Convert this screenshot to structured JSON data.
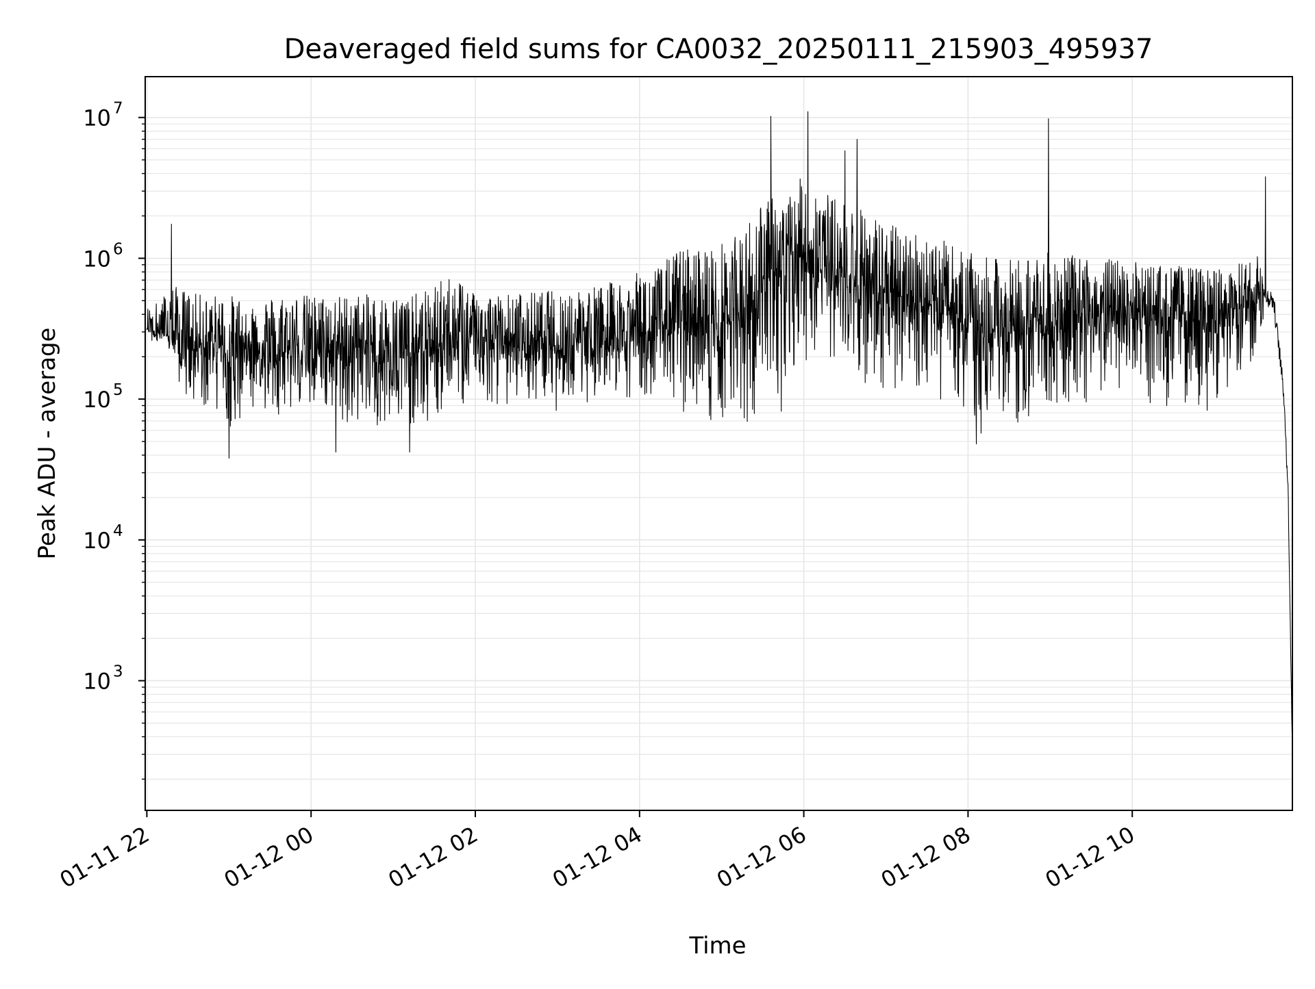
{
  "chart_data": {
    "type": "line",
    "title": "Deaveraged field sums for CA0032_20250111_215903_495937",
    "xlabel": "Time",
    "ylabel": "Peak ADU - average",
    "yscale": "log",
    "ylim": [
      120,
      19500000
    ],
    "xlim_hours": [
      21.98,
      35.95
    ],
    "grid": true,
    "line_color": "#000000",
    "grid_color": "#e6e6e6",
    "x_ticks": [
      {
        "label": "01-11 22",
        "hour": 22
      },
      {
        "label": "01-12 00",
        "hour": 24
      },
      {
        "label": "01-12 02",
        "hour": 26
      },
      {
        "label": "01-12 04",
        "hour": 28
      },
      {
        "label": "01-12 06",
        "hour": 30
      },
      {
        "label": "01-12 08",
        "hour": 32
      },
      {
        "label": "01-12 10",
        "hour": 34
      }
    ],
    "y_ticks": [
      {
        "base": "10",
        "exp": "3",
        "value": 1000
      },
      {
        "base": "10",
        "exp": "4",
        "value": 10000
      },
      {
        "base": "10",
        "exp": "5",
        "value": 100000
      },
      {
        "base": "10",
        "exp": "6",
        "value": 1000000
      },
      {
        "base": "10",
        "exp": "7",
        "value": 10000000
      }
    ],
    "series": [
      {
        "x_hours": [
          22.0,
          22.15,
          22.3,
          22.45,
          22.6,
          22.8,
          23.0,
          23.25,
          23.5,
          23.75,
          24.0,
          24.25,
          24.5,
          24.75,
          25.0,
          25.25,
          25.5,
          25.75,
          26.0,
          26.25,
          26.5,
          26.75,
          27.0,
          27.25,
          27.5,
          27.75,
          28.0,
          28.25,
          28.5,
          28.75,
          29.0,
          29.25,
          29.5,
          29.75,
          30.0,
          30.25,
          30.5,
          30.75,
          31.0,
          31.25,
          31.5,
          31.75,
          32.0,
          32.25,
          32.5,
          32.75,
          33.0,
          33.25,
          33.5,
          33.75,
          34.0,
          34.25,
          34.5,
          34.75,
          35.0,
          35.25,
          35.5,
          35.62,
          35.72,
          35.8,
          35.85,
          35.9,
          35.95
        ],
        "y_typical": [
          320000,
          300000,
          280000,
          250000,
          230000,
          240000,
          220000,
          230000,
          220000,
          230000,
          230000,
          220000,
          230000,
          220000,
          210000,
          220000,
          230000,
          260000,
          260000,
          250000,
          240000,
          250000,
          240000,
          250000,
          260000,
          280000,
          300000,
          330000,
          350000,
          330000,
          320000,
          400000,
          600000,
          700000,
          1100000,
          800000,
          650000,
          600000,
          550000,
          500000,
          480000,
          420000,
          350000,
          300000,
          300000,
          330000,
          330000,
          350000,
          380000,
          380000,
          400000,
          380000,
          380000,
          380000,
          380000,
          400000,
          450000,
          550000,
          500000,
          200000,
          100000,
          20000,
          300
        ],
        "y_high": [
          450000,
          500000,
          650000,
          600000,
          560000,
          550000,
          550000,
          520000,
          540000,
          560000,
          550000,
          540000,
          560000,
          550000,
          540000,
          550000,
          650000,
          800000,
          600000,
          560000,
          570000,
          580000,
          600000,
          620000,
          650000,
          700000,
          800000,
          900000,
          1200000,
          1200000,
          1300000,
          1500000,
          3000000,
          2500000,
          4000000,
          3000000,
          2500000,
          2200000,
          1800000,
          1600000,
          1500000,
          1300000,
          1100000,
          1000000,
          1000000,
          1050000,
          1100000,
          1050000,
          1000000,
          1000000,
          950000,
          900000,
          900000,
          850000,
          850000,
          900000,
          1000000,
          1200000,
          900000,
          300000,
          150000,
          50000,
          600
        ],
        "y_low": [
          300000,
          250000,
          200000,
          90000,
          70000,
          80000,
          60000,
          70000,
          75000,
          80000,
          80000,
          70000,
          65000,
          65000,
          60000,
          62000,
          70000,
          85000,
          85000,
          85000,
          90000,
          85000,
          80000,
          85000,
          90000,
          100000,
          100000,
          100000,
          80000,
          60000,
          55000,
          50000,
          70000,
          80000,
          120000,
          200000,
          140000,
          120000,
          100000,
          90000,
          90000,
          80000,
          60000,
          50000,
          55000,
          60000,
          60000,
          65000,
          80000,
          90000,
          100000,
          85000,
          80000,
          80000,
          75000,
          100000,
          200000,
          400000,
          200000,
          100000,
          60000,
          10000,
          200
        ],
        "spikes": [
          {
            "hour": 22.3,
            "value": 1750000
          },
          {
            "hour": 23.0,
            "value": 38000
          },
          {
            "hour": 24.3,
            "value": 42000
          },
          {
            "hour": 25.2,
            "value": 42000
          },
          {
            "hour": 29.6,
            "value": 10200000
          },
          {
            "hour": 30.05,
            "value": 11000000
          },
          {
            "hour": 30.5,
            "value": 5800000
          },
          {
            "hour": 30.65,
            "value": 7000000
          },
          {
            "hour": 32.1,
            "value": 48000
          },
          {
            "hour": 32.98,
            "value": 9800000
          },
          {
            "hour": 35.62,
            "value": 3800000
          }
        ]
      }
    ]
  }
}
